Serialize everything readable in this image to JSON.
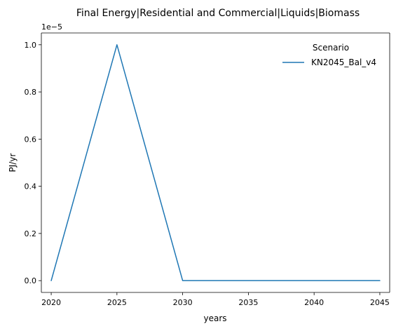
{
  "chart_data": {
    "type": "line",
    "title": "Final Energy|Residential and Commercial|Liquids|Biomass",
    "xlabel": "years",
    "ylabel": "PJ/yr",
    "y_offset_label": "1e−5",
    "y_scale": 1e-05,
    "xlim": [
      2019.25,
      2045.75
    ],
    "ylim": [
      -0.05,
      1.05
    ],
    "x_ticks": [
      2020,
      2025,
      2030,
      2035,
      2040,
      2045
    ],
    "y_ticks": [
      0.0,
      0.2,
      0.4,
      0.6,
      0.8,
      1.0
    ],
    "y_tick_labels": [
      "0.0",
      "0.2",
      "0.4",
      "0.6",
      "0.8",
      "1.0"
    ],
    "grid": false,
    "legend": {
      "title": "Scenario",
      "placement": "top-right"
    },
    "series": [
      {
        "name": "KN2045_Bal_v4",
        "color": "#1f77b4",
        "x": [
          2020,
          2025,
          2030,
          2035,
          2040,
          2045
        ],
        "values": [
          0.0,
          1.0,
          0.0,
          0.0,
          0.0,
          0.0
        ]
      }
    ]
  }
}
